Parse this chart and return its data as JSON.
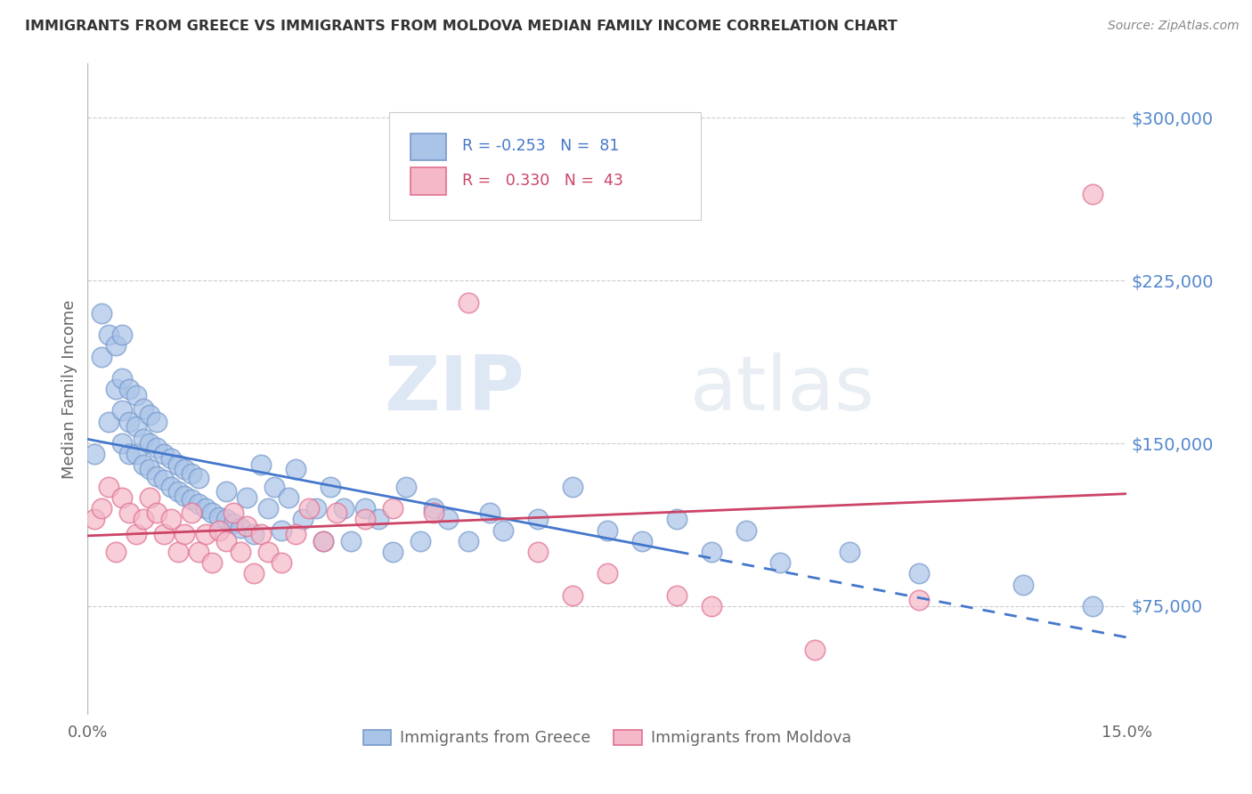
{
  "title": "IMMIGRANTS FROM GREECE VS IMMIGRANTS FROM MOLDOVA MEDIAN FAMILY INCOME CORRELATION CHART",
  "source": "Source: ZipAtlas.com",
  "ylabel": "Median Family Income",
  "xmin": 0.0,
  "xmax": 0.15,
  "ymin": 25000,
  "ymax": 325000,
  "yticks": [
    75000,
    150000,
    225000,
    300000
  ],
  "ytick_labels": [
    "$75,000",
    "$150,000",
    "$225,000",
    "$300,000"
  ],
  "xticks": [
    0.0,
    0.03,
    0.06,
    0.09,
    0.12,
    0.15
  ],
  "xtick_labels": [
    "0.0%",
    "",
    "",
    "",
    "",
    "15.0%"
  ],
  "greece_color": "#aac4e8",
  "moldova_color": "#f4b8c8",
  "greece_edge": "#7799cc",
  "moldova_edge": "#e07090",
  "trendline_greece_color": "#4477cc",
  "trendline_moldova_color": "#cc4466",
  "R_greece": -0.253,
  "N_greece": 81,
  "R_moldova": 0.33,
  "N_moldova": 43,
  "legend_label_greece": "Immigrants from Greece",
  "legend_label_moldova": "Immigrants from Moldova",
  "watermark_zip": "ZIP",
  "watermark_atlas": "atlas",
  "background_color": "#ffffff",
  "grid_color": "#cccccc",
  "title_color": "#333333",
  "axis_label_color": "#666666",
  "ytick_color": "#5588cc",
  "source_color": "#888888",
  "greece_scatter_x": [
    0.001,
    0.002,
    0.002,
    0.003,
    0.003,
    0.004,
    0.004,
    0.005,
    0.005,
    0.005,
    0.005,
    0.006,
    0.006,
    0.006,
    0.007,
    0.007,
    0.007,
    0.008,
    0.008,
    0.008,
    0.009,
    0.009,
    0.009,
    0.01,
    0.01,
    0.01,
    0.011,
    0.011,
    0.012,
    0.012,
    0.013,
    0.013,
    0.014,
    0.014,
    0.015,
    0.015,
    0.016,
    0.016,
    0.017,
    0.018,
    0.019,
    0.02,
    0.02,
    0.021,
    0.022,
    0.023,
    0.024,
    0.025,
    0.026,
    0.027,
    0.028,
    0.029,
    0.03,
    0.031,
    0.033,
    0.034,
    0.035,
    0.037,
    0.038,
    0.04,
    0.042,
    0.044,
    0.046,
    0.048,
    0.05,
    0.052,
    0.055,
    0.058,
    0.06,
    0.065,
    0.07,
    0.075,
    0.08,
    0.085,
    0.09,
    0.095,
    0.1,
    0.11,
    0.12,
    0.135,
    0.145
  ],
  "greece_scatter_y": [
    145000,
    190000,
    210000,
    160000,
    200000,
    175000,
    195000,
    150000,
    165000,
    180000,
    200000,
    145000,
    160000,
    175000,
    145000,
    158000,
    172000,
    140000,
    152000,
    166000,
    138000,
    150000,
    163000,
    135000,
    148000,
    160000,
    133000,
    145000,
    130000,
    143000,
    128000,
    140000,
    126000,
    138000,
    124000,
    136000,
    122000,
    134000,
    120000,
    118000,
    116000,
    115000,
    128000,
    113000,
    111000,
    125000,
    108000,
    140000,
    120000,
    130000,
    110000,
    125000,
    138000,
    115000,
    120000,
    105000,
    130000,
    120000,
    105000,
    120000,
    115000,
    100000,
    130000,
    105000,
    120000,
    115000,
    105000,
    118000,
    110000,
    115000,
    130000,
    110000,
    105000,
    115000,
    100000,
    110000,
    95000,
    100000,
    90000,
    85000,
    75000
  ],
  "moldova_scatter_x": [
    0.001,
    0.002,
    0.003,
    0.004,
    0.005,
    0.006,
    0.007,
    0.008,
    0.009,
    0.01,
    0.011,
    0.012,
    0.013,
    0.014,
    0.015,
    0.016,
    0.017,
    0.018,
    0.019,
    0.02,
    0.021,
    0.022,
    0.023,
    0.024,
    0.025,
    0.026,
    0.028,
    0.03,
    0.032,
    0.034,
    0.036,
    0.04,
    0.044,
    0.05,
    0.055,
    0.065,
    0.07,
    0.075,
    0.085,
    0.09,
    0.105,
    0.12,
    0.145
  ],
  "moldova_scatter_y": [
    115000,
    120000,
    130000,
    100000,
    125000,
    118000,
    108000,
    115000,
    125000,
    118000,
    108000,
    115000,
    100000,
    108000,
    118000,
    100000,
    108000,
    95000,
    110000,
    105000,
    118000,
    100000,
    112000,
    90000,
    108000,
    100000,
    95000,
    108000,
    120000,
    105000,
    118000,
    115000,
    120000,
    118000,
    215000,
    100000,
    80000,
    90000,
    80000,
    75000,
    55000,
    78000,
    265000
  ],
  "trendline_solid_end": 0.085,
  "trendline_dash_start": 0.085
}
